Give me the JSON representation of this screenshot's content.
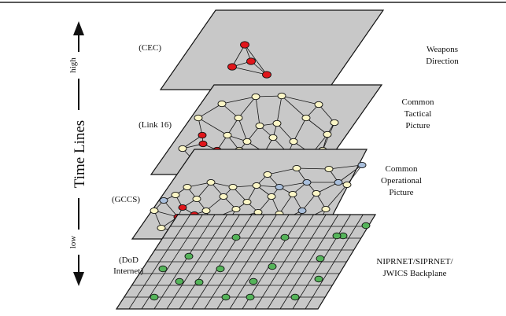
{
  "time_axis": {
    "label": "Time Lines",
    "high": "high",
    "low": "low"
  },
  "layers": [
    {
      "id": "weapons",
      "system": "(CEC)",
      "name_lines": [
        "Weapons",
        "Direction"
      ]
    },
    {
      "id": "tactical",
      "system": "(Link 16)",
      "name_lines": [
        "Common",
        "Tactical",
        "Picture"
      ]
    },
    {
      "id": "operational",
      "system": "(GCCS)",
      "name_lines": [
        "Common",
        "Operational",
        "Picture"
      ]
    },
    {
      "id": "backplane",
      "system_lines": [
        "(DoD",
        "Internet)"
      ],
      "name_lines": [
        "NIPRNET/SIPRNET/",
        "JWICS Backplane"
      ]
    }
  ],
  "colors": {
    "plane_fill": "#c8c8c8",
    "red_node": "#e0161b",
    "cream_node": "#fbf6c6",
    "blue_node": "#a9bfdc",
    "green_node": "#55b45a",
    "rule": "#222222"
  }
}
